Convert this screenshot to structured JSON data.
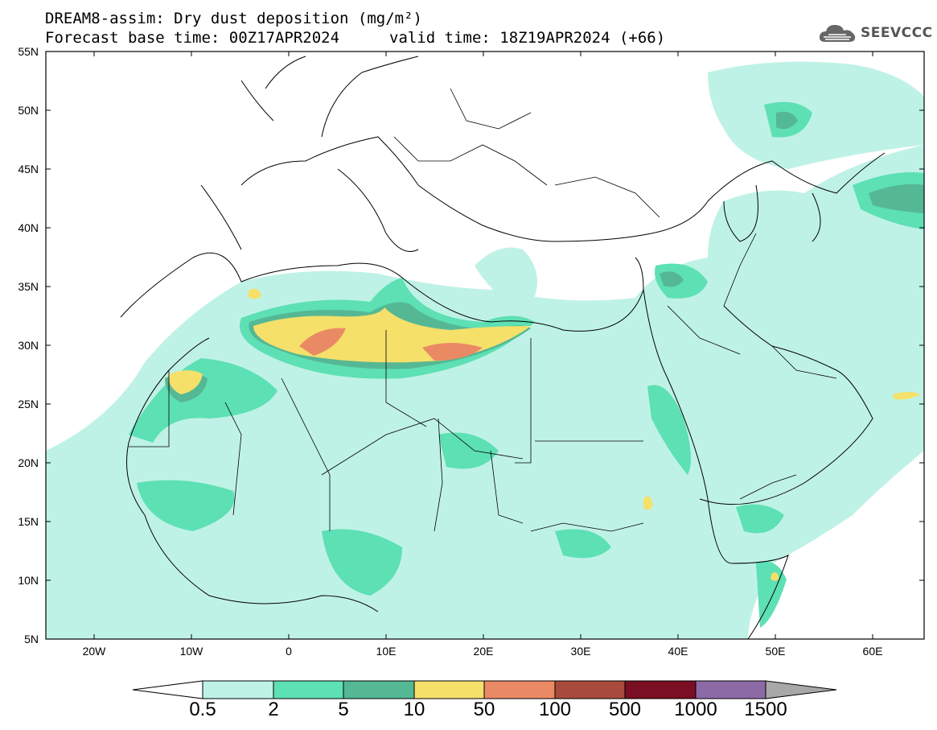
{
  "header": {
    "line1": "DREAM8-assim: Dry dust deposition (mg/m²)",
    "line2": "Forecast base time: 00Z17APR2024",
    "valid": "valid time: 18Z19APR2024 (+66)"
  },
  "logo": {
    "text": "SEEVCCC",
    "icon": "cloud-icon"
  },
  "axes": {
    "lat_labels": [
      "55N",
      "50N",
      "45N",
      "40N",
      "35N",
      "30N",
      "25N",
      "20N",
      "15N",
      "10N",
      "5N"
    ],
    "lon_labels": [
      "20W",
      "10W",
      "0",
      "10E",
      "20E",
      "30E",
      "40E",
      "50E",
      "60E"
    ]
  },
  "colors": {
    "c1": "#bff2e6",
    "c2": "#5de0b4",
    "c3": "#55b894",
    "c4": "#f5e06a",
    "c5": "#ea8a64",
    "c6": "#a84a3c",
    "c7": "#7a0e22",
    "c8": "#8c6aa6",
    "c9": "#a8a8a8"
  },
  "colorbar": {
    "labels": [
      "0.5",
      "2",
      "5",
      "10",
      "50",
      "100",
      "500",
      "1000",
      "1500"
    ]
  }
}
